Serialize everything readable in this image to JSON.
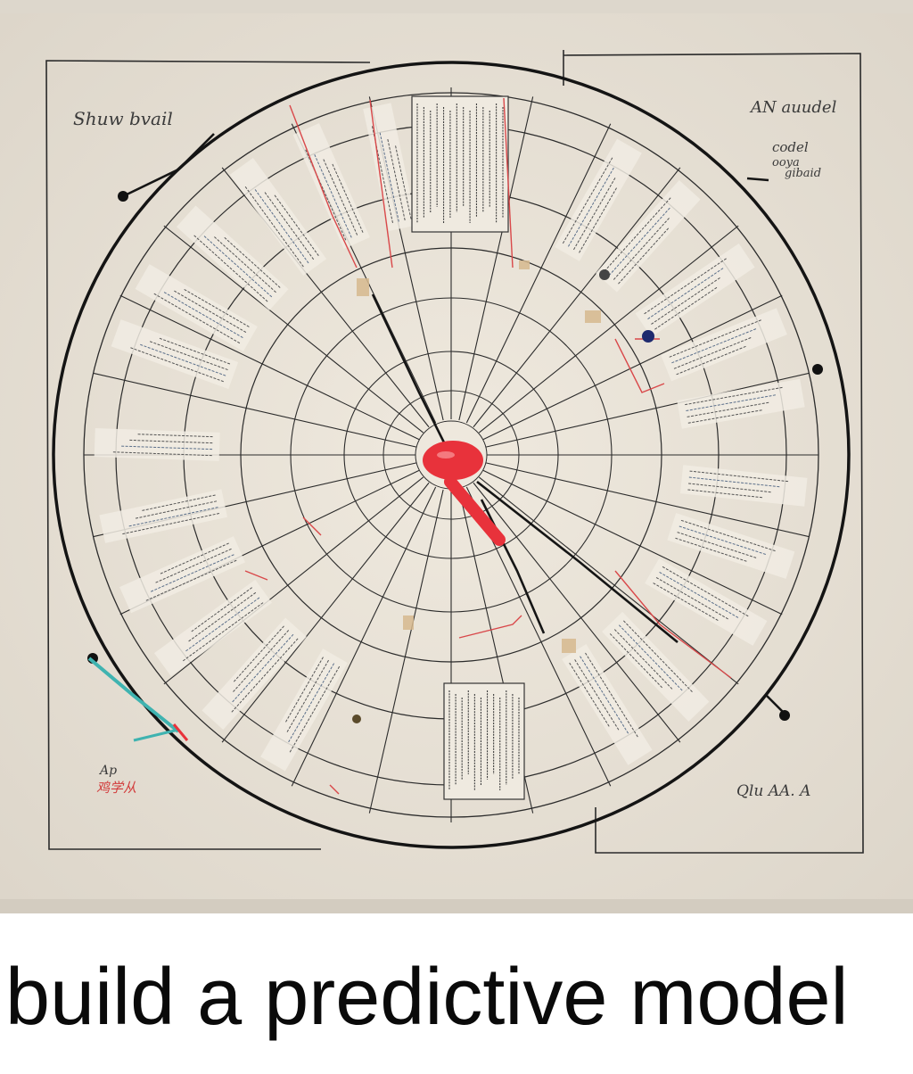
{
  "caption": "build a predictive model",
  "colors": {
    "paper": "#e9e3d8",
    "board": "#ddd7cc",
    "ink": "#1c1c1c",
    "red_accent": "#e8323b",
    "red_pencil": "#d9484a",
    "teal_marker": "#3fb3b0"
  },
  "handwriting": {
    "top_left": "Shuw bvail",
    "top_right_1": "AN auudel",
    "top_right_2": "codel",
    "top_right_3": "ooya",
    "top_right_4": "gibaid",
    "bottom_left_1": "Ap",
    "bottom_left_2": "鸡学从",
    "bottom_right": "Qlu AA. A"
  },
  "icons": [
    "red-pushpin-icon"
  ]
}
